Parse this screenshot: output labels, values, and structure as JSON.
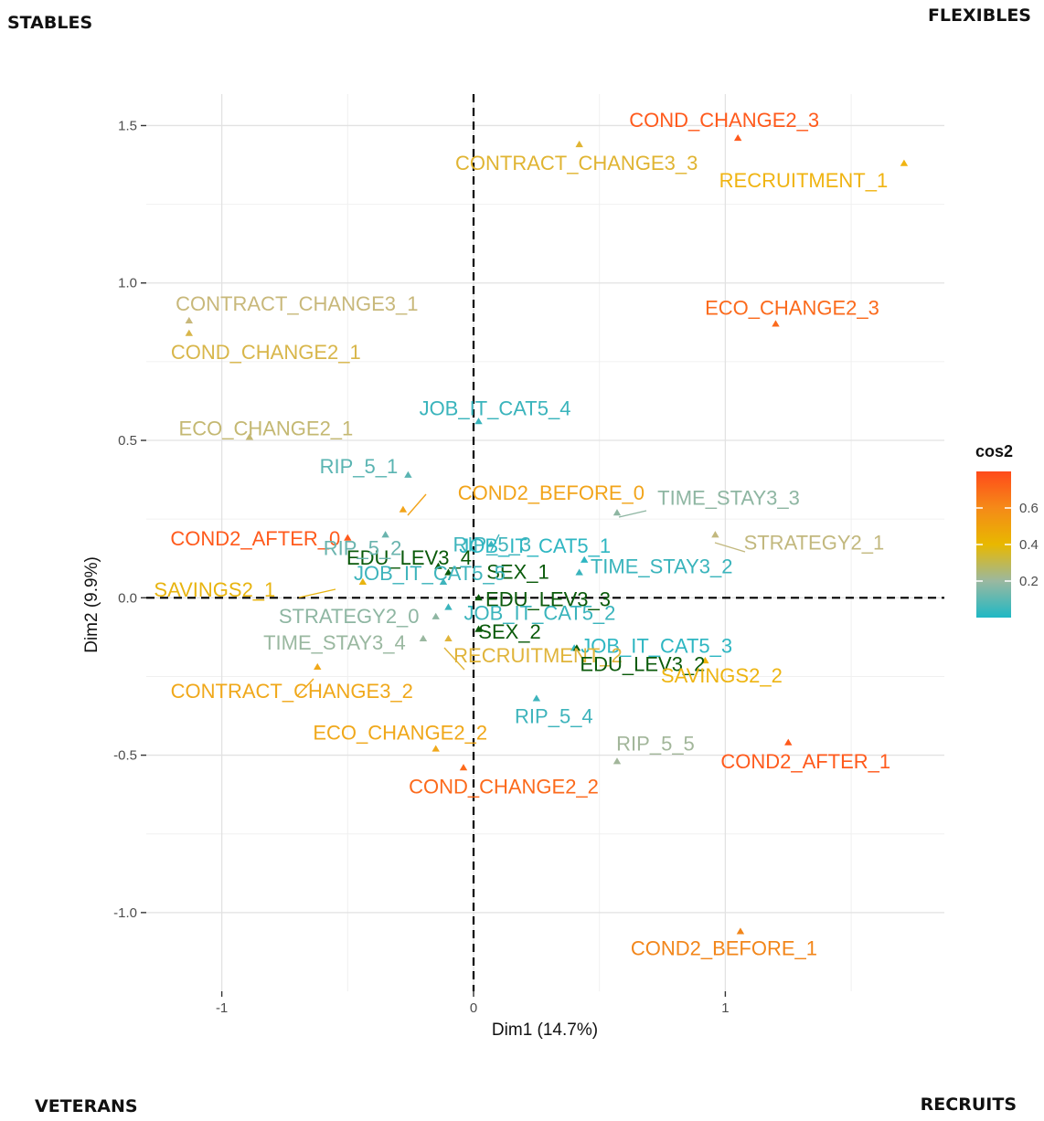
{
  "quadrant_labels": {
    "top_left": "STABLES",
    "top_right": "FLEXIBLES",
    "bottom_left": "VETERANS",
    "bottom_right": "RECRUITS"
  },
  "chart_data": {
    "type": "scatter",
    "xlabel": "Dim1 (14.7%)",
    "ylabel": "Dim2 (9.9%)",
    "xlim": [
      -1.3,
      1.87
    ],
    "ylim": [
      -1.25,
      1.6
    ],
    "xticks": [
      -1,
      0,
      1
    ],
    "yticks": [
      -1.0,
      -0.5,
      0.0,
      0.5,
      1.0,
      1.5
    ],
    "ytick_labels": [
      "-1.0",
      "-0.5",
      "0.0",
      "0.5",
      "1.0",
      "1.5"
    ],
    "reference_lines": {
      "x": 0,
      "y": 0,
      "style": "dashed"
    },
    "grid": true,
    "color_legend": {
      "title": "cos2",
      "ticks": [
        "0.2",
        "0.4",
        "0.6"
      ],
      "scale": [
        [
          0.0,
          "#1fb8c4"
        ],
        [
          0.2,
          "#9ab8a0"
        ],
        [
          0.4,
          "#e8b800"
        ],
        [
          0.6,
          "#f58a18"
        ],
        [
          0.8,
          "#ff4a1a"
        ]
      ]
    },
    "points": [
      {
        "label": "COND_CHANGE2_3",
        "x": 1.05,
        "y": 1.46,
        "color": "#ff5a1c"
      },
      {
        "label": "CONTRACT_CHANGE3_3",
        "x": 0.42,
        "y": 1.44,
        "color": "#e0b432"
      },
      {
        "label": "RECRUITMENT_1",
        "x": 1.71,
        "y": 1.38,
        "color": "#f0b412"
      },
      {
        "label": "CONTRACT_CHANGE3_1",
        "x": -1.13,
        "y": 0.88,
        "color": "#c8b87a"
      },
      {
        "label": "COND_CHANGE2_1",
        "x": -1.13,
        "y": 0.84,
        "color": "#d8b64a"
      },
      {
        "label": "ECO_CHANGE2_3",
        "x": 1.2,
        "y": 0.87,
        "color": "#fb6a1c"
      },
      {
        "label": "JOB_IT_CAT5_4",
        "x": 0.02,
        "y": 0.56,
        "color": "#3ab4bc"
      },
      {
        "label": "ECO_CHANGE2_1",
        "x": -0.89,
        "y": 0.51,
        "color": "#c4b872"
      },
      {
        "label": "RIP_5_1",
        "x": -0.26,
        "y": 0.39,
        "color": "#5ab4b2"
      },
      {
        "label": "COND2_BEFORE_0",
        "x": -0.28,
        "y": 0.28,
        "color": "#f2a41a"
      },
      {
        "label": "TIME_STAY3_3",
        "x": 0.57,
        "y": 0.27,
        "color": "#8eb6a2"
      },
      {
        "label": "RIP_5_3",
        "x": 0.07,
        "y": 0.17,
        "color": "#3eb4bc"
      },
      {
        "label": "EDU_LEV3_4",
        "x": -0.14,
        "y": 0.1,
        "color": "#0a5a0a"
      },
      {
        "label": "COND2_AFTER_0",
        "x": -0.5,
        "y": 0.19,
        "color": "#ff5a1c"
      },
      {
        "label": "RIP_5_2",
        "x": -0.35,
        "y": 0.2,
        "color": "#6ab4ae"
      },
      {
        "label": "JOB_IT_CAT5_1",
        "x": 0.44,
        "y": 0.12,
        "color": "#2eb6c2"
      },
      {
        "label": "STRATEGY2_1",
        "x": 0.96,
        "y": 0.2,
        "color": "#c2b87e"
      },
      {
        "label": "SEX_1",
        "x": -0.1,
        "y": 0.08,
        "color": "#0a5a0a"
      },
      {
        "label": "JOB_IT_CAT5_5",
        "x": -0.12,
        "y": 0.05,
        "color": "#3eb4bc"
      },
      {
        "label": "TIME_STAY3_2",
        "x": 0.42,
        "y": 0.08,
        "color": "#3ab4bc"
      },
      {
        "label": "SAVINGS2_1",
        "x": -0.44,
        "y": 0.05,
        "color": "#e8b410"
      },
      {
        "label": "EDU_LEV3_3",
        "x": 0.02,
        "y": 0.0,
        "color": "#0a5a0a"
      },
      {
        "label": "JOB_IT_CAT5_2",
        "x": -0.1,
        "y": -0.03,
        "color": "#3ab4bc"
      },
      {
        "label": "STRATEGY2_0",
        "x": -0.15,
        "y": -0.06,
        "color": "#8eb6a2"
      },
      {
        "label": "SEX_2",
        "x": 0.02,
        "y": -0.1,
        "color": "#0a5a0a"
      },
      {
        "label": "JOB_IT_CAT5_3",
        "x": 0.4,
        "y": -0.16,
        "color": "#2eb6c2"
      },
      {
        "label": "TIME_STAY3_4",
        "x": -0.2,
        "y": -0.13,
        "color": "#9ab8a0"
      },
      {
        "label": "RECRUITMENT_2",
        "x": -0.1,
        "y": -0.13,
        "color": "#e0b43a"
      },
      {
        "label": "EDU_LEV3_2",
        "x": 0.41,
        "y": -0.16,
        "color": "#0a5a0a"
      },
      {
        "label": "SAVINGS2_2",
        "x": 0.92,
        "y": -0.2,
        "color": "#eeb410"
      },
      {
        "label": "CONTRACT_CHANGE3_2",
        "x": -0.62,
        "y": -0.22,
        "color": "#f0a81a"
      },
      {
        "label": "RIP_5_4",
        "x": 0.25,
        "y": -0.32,
        "color": "#3eb4bc"
      },
      {
        "label": "ECO_CHANGE2_2",
        "x": -0.15,
        "y": -0.48,
        "color": "#f0a81a"
      },
      {
        "label": "RIP_5_5",
        "x": 0.57,
        "y": -0.52,
        "color": "#a2b69a"
      },
      {
        "label": "COND2_AFTER_1",
        "x": 1.25,
        "y": -0.46,
        "color": "#ff5a1c"
      },
      {
        "label": "COND_CHANGE2_2",
        "x": -0.04,
        "y": -0.54,
        "color": "#fc6a1c"
      },
      {
        "label": "COND2_BEFORE_1",
        "x": 1.06,
        "y": -1.06,
        "color": "#f2861a"
      }
    ]
  }
}
